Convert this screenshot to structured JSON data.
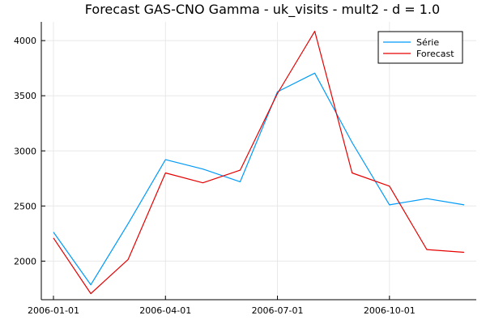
{
  "chart_data": {
    "type": "line",
    "title": "Forecast GAS-CNO Gamma - uk_visits - mult2 - d = 1.0",
    "xlabel": "",
    "ylabel": "",
    "x": [
      "2006-01-01",
      "2006-02-01",
      "2006-03-01",
      "2006-04-01",
      "2006-05-01",
      "2006-06-01",
      "2006-07-01",
      "2006-08-01",
      "2006-09-01",
      "2006-10-01",
      "2006-11-01",
      "2006-12-01"
    ],
    "x_ticks": [
      "2006-01-01",
      "2006-04-01",
      "2006-07-01",
      "2006-10-01"
    ],
    "y_ticks": [
      2000,
      2500,
      3000,
      3500,
      4000
    ],
    "ylim": [
      1650,
      4170
    ],
    "grid": true,
    "legend_position": "top-right",
    "series": [
      {
        "name": "Série",
        "color": "#009AFA",
        "values": [
          2263,
          1785,
          2340,
          2920,
          2835,
          2720,
          3535,
          3705,
          3075,
          2510,
          2567,
          2510
        ]
      },
      {
        "name": "Forecast",
        "color": "#E60000",
        "values": [
          2210,
          1705,
          2015,
          2800,
          2710,
          2825,
          3520,
          4085,
          2800,
          2680,
          2105,
          2080
        ]
      }
    ]
  }
}
